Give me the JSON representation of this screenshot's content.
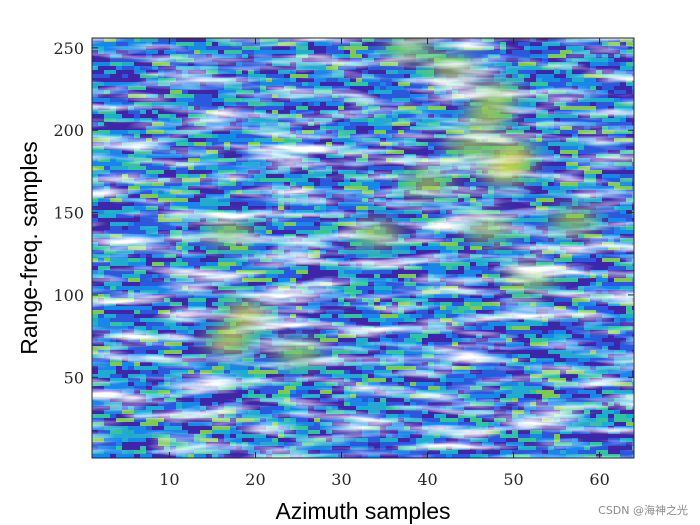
{
  "chart_data": {
    "type": "heatmap",
    "title": "",
    "xlabel": "Azimuth samples",
    "ylabel": "Range-freq. samples",
    "xlim": [
      1,
      64
    ],
    "ylim": [
      1,
      256
    ],
    "xticks": [
      10,
      20,
      30,
      40,
      50,
      60
    ],
    "yticks": [
      50,
      100,
      150,
      200,
      250
    ],
    "grid": false,
    "colormap": "parula",
    "colors": [
      "#3e26a8",
      "#2c58dd",
      "#1a86e8",
      "#22abd1",
      "#34c2a0",
      "#7cc85c",
      "#c8c13b",
      "#f6d82a"
    ],
    "hotspots": [
      {
        "x": 19,
        "y": 88,
        "level": 0.95
      },
      {
        "x": 17,
        "y": 72,
        "level": 0.85
      },
      {
        "x": 49,
        "y": 175,
        "level": 0.95
      },
      {
        "x": 50,
        "y": 186,
        "level": 0.85
      },
      {
        "x": 47,
        "y": 208,
        "level": 0.8
      },
      {
        "x": 48,
        "y": 222,
        "level": 0.7
      },
      {
        "x": 43,
        "y": 238,
        "level": 0.75
      },
      {
        "x": 40,
        "y": 168,
        "level": 0.65
      },
      {
        "x": 34,
        "y": 137,
        "level": 0.7
      },
      {
        "x": 17,
        "y": 138,
        "level": 0.6
      },
      {
        "x": 45,
        "y": 190,
        "level": 0.6
      },
      {
        "x": 52,
        "y": 110,
        "level": 0.6
      },
      {
        "x": 25,
        "y": 65,
        "level": 0.55
      },
      {
        "x": 57,
        "y": 145,
        "level": 0.55
      },
      {
        "x": 47,
        "y": 140,
        "level": 0.6
      },
      {
        "x": 38,
        "y": 250,
        "level": 0.5
      }
    ]
  },
  "watermark": "CSDN @海神之光"
}
